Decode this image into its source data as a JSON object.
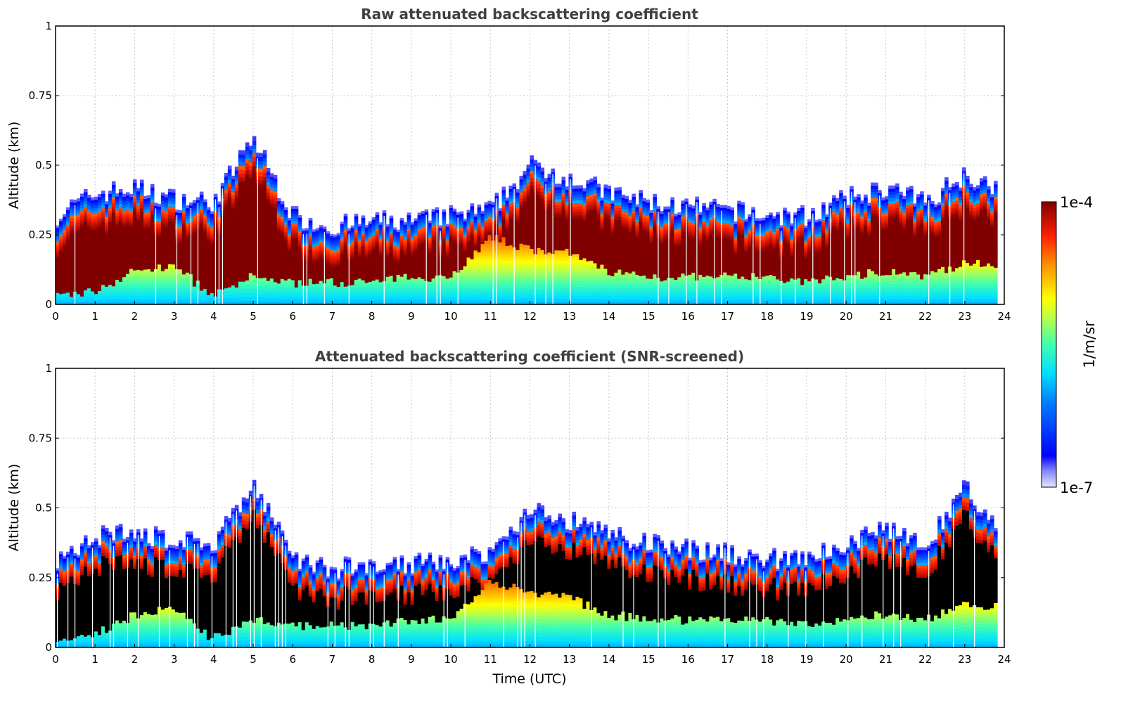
{
  "chart_data": [
    {
      "type": "heatmap",
      "title": "Raw attenuated backscattering coefficient",
      "xlabel": "",
      "ylabel": "Altitude (km)",
      "xlim": [
        0,
        24
      ],
      "ylim": [
        0,
        1
      ],
      "xticks": [
        "0",
        "1",
        "2",
        "3",
        "4",
        "5",
        "6",
        "7",
        "8",
        "9",
        "10",
        "11",
        "12",
        "13",
        "14",
        "15",
        "16",
        "17",
        "18",
        "19",
        "20",
        "21",
        "22",
        "23",
        "24"
      ],
      "yticks": [
        "0",
        "0.25",
        "0.5",
        "0.75",
        "1"
      ],
      "grid": true,
      "layer_top_km": [
        0.3,
        0.38,
        0.4,
        0.36,
        0.35,
        0.58,
        0.3,
        0.26,
        0.28,
        0.28,
        0.3,
        0.32,
        0.48,
        0.44,
        0.38,
        0.35,
        0.33,
        0.32,
        0.3,
        0.3,
        0.36,
        0.4,
        0.35,
        0.45,
        0.4
      ],
      "layer_bottom_km": [
        0.03,
        0.05,
        0.12,
        0.14,
        0.03,
        0.1,
        0.08,
        0.08,
        0.08,
        0.1,
        0.1,
        0.24,
        0.2,
        0.18,
        0.12,
        0.1,
        0.1,
        0.1,
        0.1,
        0.08,
        0.1,
        0.12,
        0.1,
        0.15,
        0.15
      ]
    },
    {
      "type": "heatmap",
      "title": "Attenuated backscattering coefficient (SNR-screened)",
      "xlabel": "Time (UTC)",
      "ylabel": "Altitude (km)",
      "xlim": [
        0,
        24
      ],
      "ylim": [
        0,
        1
      ],
      "xticks": [
        "0",
        "1",
        "2",
        "3",
        "4",
        "5",
        "6",
        "7",
        "8",
        "9",
        "10",
        "11",
        "12",
        "13",
        "14",
        "15",
        "16",
        "17",
        "18",
        "19",
        "20",
        "21",
        "22",
        "23",
        "24"
      ],
      "yticks": [
        "0",
        "0.25",
        "0.5",
        "0.75",
        "1"
      ],
      "grid": true,
      "layer_top_km": [
        0.3,
        0.38,
        0.4,
        0.36,
        0.35,
        0.58,
        0.3,
        0.26,
        0.28,
        0.28,
        0.3,
        0.32,
        0.48,
        0.44,
        0.38,
        0.35,
        0.33,
        0.32,
        0.3,
        0.3,
        0.36,
        0.4,
        0.35,
        0.55,
        0.4
      ],
      "layer_bottom_km": [
        0.03,
        0.05,
        0.12,
        0.14,
        0.03,
        0.1,
        0.08,
        0.08,
        0.08,
        0.1,
        0.1,
        0.24,
        0.2,
        0.18,
        0.12,
        0.1,
        0.1,
        0.1,
        0.1,
        0.08,
        0.1,
        0.12,
        0.1,
        0.15,
        0.15
      ]
    }
  ],
  "colorbar": {
    "label": "1/m/sr",
    "max_label": "1e-4",
    "min_label": "1e-7",
    "colormap": "jet"
  }
}
